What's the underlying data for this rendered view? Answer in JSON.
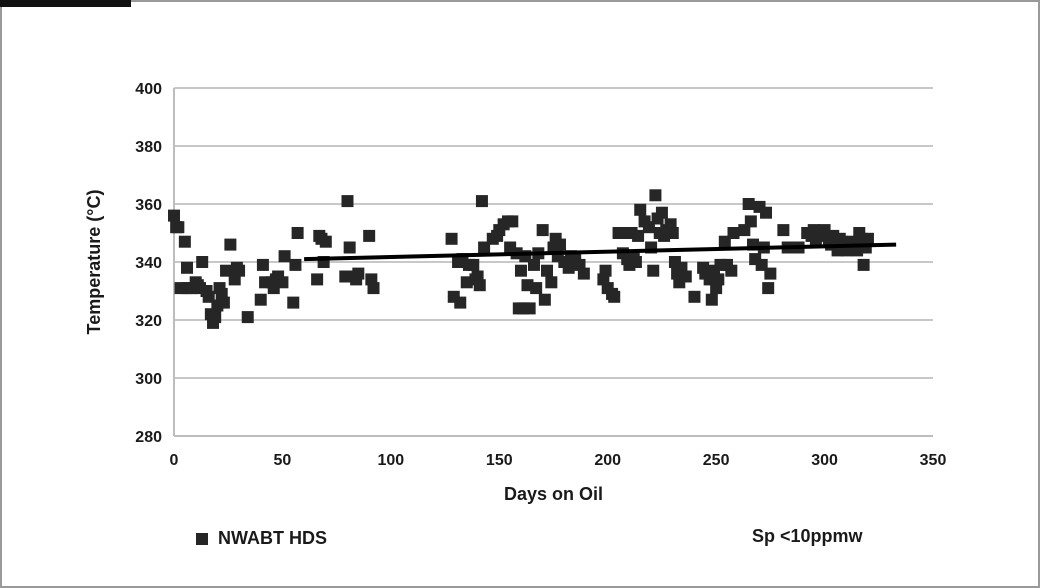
{
  "chart_data": {
    "type": "scatter",
    "title": "",
    "xlabel": "Days on Oil",
    "ylabel": "Temperature (°C)",
    "xlim": [
      0,
      350
    ],
    "ylim": [
      280,
      400
    ],
    "xticks": [
      0,
      50,
      100,
      150,
      200,
      250,
      300,
      350
    ],
    "yticks": [
      280,
      300,
      320,
      340,
      360,
      380,
      400
    ],
    "grid": "horizontal",
    "legend_position": "bottom-left",
    "series": [
      {
        "name": "NWABT HDS",
        "color": "#262626",
        "points": [
          [
            0,
            356
          ],
          [
            1,
            352
          ],
          [
            2,
            352
          ],
          [
            3,
            331
          ],
          [
            5,
            347
          ],
          [
            6,
            331
          ],
          [
            6,
            338
          ],
          [
            8,
            331
          ],
          [
            10,
            333
          ],
          [
            11,
            332
          ],
          [
            12,
            331
          ],
          [
            13,
            340
          ],
          [
            15,
            330
          ],
          [
            16,
            328
          ],
          [
            17,
            322
          ],
          [
            18,
            319
          ],
          [
            19,
            321
          ],
          [
            20,
            325
          ],
          [
            21,
            331
          ],
          [
            22,
            329
          ],
          [
            23,
            326
          ],
          [
            24,
            337
          ],
          [
            26,
            346
          ],
          [
            28,
            334
          ],
          [
            29,
            338
          ],
          [
            30,
            337
          ],
          [
            34,
            321
          ],
          [
            40,
            327
          ],
          [
            41,
            339
          ],
          [
            42,
            333
          ],
          [
            45,
            333
          ],
          [
            46,
            331
          ],
          [
            47,
            334
          ],
          [
            48,
            335
          ],
          [
            50,
            333
          ],
          [
            51,
            342
          ],
          [
            55,
            326
          ],
          [
            56,
            339
          ],
          [
            57,
            350
          ],
          [
            66,
            334
          ],
          [
            67,
            349
          ],
          [
            68,
            348
          ],
          [
            69,
            340
          ],
          [
            70,
            347
          ],
          [
            79,
            335
          ],
          [
            80,
            361
          ],
          [
            81,
            345
          ],
          [
            82,
            335
          ],
          [
            84,
            334
          ],
          [
            85,
            336
          ],
          [
            90,
            349
          ],
          [
            91,
            334
          ],
          [
            92,
            331
          ],
          [
            128,
            348
          ],
          [
            129,
            328
          ],
          [
            131,
            340
          ],
          [
            132,
            326
          ],
          [
            133,
            341
          ],
          [
            135,
            333
          ],
          [
            136,
            339
          ],
          [
            138,
            339
          ],
          [
            139,
            334
          ],
          [
            140,
            335
          ],
          [
            141,
            332
          ],
          [
            142,
            361
          ],
          [
            143,
            345
          ],
          [
            147,
            348
          ],
          [
            149,
            349
          ],
          [
            150,
            351
          ],
          [
            152,
            353
          ],
          [
            154,
            354
          ],
          [
            155,
            345
          ],
          [
            156,
            354
          ],
          [
            158,
            343
          ],
          [
            159,
            324
          ],
          [
            160,
            337
          ],
          [
            161,
            324
          ],
          [
            162,
            342
          ],
          [
            163,
            332
          ],
          [
            164,
            324
          ],
          [
            166,
            339
          ],
          [
            167,
            331
          ],
          [
            168,
            343
          ],
          [
            170,
            351
          ],
          [
            171,
            327
          ],
          [
            172,
            337
          ],
          [
            174,
            333
          ],
          [
            175,
            345
          ],
          [
            176,
            348
          ],
          [
            177,
            342
          ],
          [
            178,
            346
          ],
          [
            180,
            340
          ],
          [
            182,
            338
          ],
          [
            183,
            342
          ],
          [
            185,
            341
          ],
          [
            187,
            339
          ],
          [
            189,
            336
          ],
          [
            198,
            334
          ],
          [
            199,
            337
          ],
          [
            200,
            331
          ],
          [
            202,
            329
          ],
          [
            203,
            328
          ],
          [
            205,
            350
          ],
          [
            207,
            343
          ],
          [
            208,
            350
          ],
          [
            209,
            341
          ],
          [
            210,
            339
          ],
          [
            211,
            350
          ],
          [
            212,
            342
          ],
          [
            213,
            340
          ],
          [
            214,
            349
          ],
          [
            215,
            358
          ],
          [
            217,
            354
          ],
          [
            219,
            352
          ],
          [
            220,
            345
          ],
          [
            221,
            337
          ],
          [
            222,
            363
          ],
          [
            223,
            355
          ],
          [
            224,
            350
          ],
          [
            225,
            357
          ],
          [
            226,
            349
          ],
          [
            227,
            351
          ],
          [
            229,
            353
          ],
          [
            230,
            350
          ],
          [
            231,
            340
          ],
          [
            232,
            336
          ],
          [
            233,
            333
          ],
          [
            234,
            338
          ],
          [
            236,
            335
          ],
          [
            240,
            328
          ],
          [
            244,
            338
          ],
          [
            245,
            336
          ],
          [
            247,
            334
          ],
          [
            248,
            327
          ],
          [
            249,
            337
          ],
          [
            250,
            331
          ],
          [
            251,
            334
          ],
          [
            252,
            339
          ],
          [
            254,
            347
          ],
          [
            255,
            339
          ],
          [
            257,
            337
          ],
          [
            258,
            350
          ],
          [
            263,
            351
          ],
          [
            265,
            360
          ],
          [
            266,
            354
          ],
          [
            267,
            346
          ],
          [
            268,
            341
          ],
          [
            270,
            359
          ],
          [
            271,
            339
          ],
          [
            272,
            345
          ],
          [
            273,
            357
          ],
          [
            274,
            331
          ],
          [
            275,
            336
          ],
          [
            281,
            351
          ],
          [
            283,
            345
          ],
          [
            288,
            345
          ],
          [
            292,
            350
          ],
          [
            294,
            349
          ],
          [
            295,
            351
          ],
          [
            296,
            347
          ],
          [
            297,
            349
          ],
          [
            298,
            350
          ],
          [
            300,
            351
          ],
          [
            302,
            347
          ],
          [
            303,
            346
          ],
          [
            304,
            349
          ],
          [
            306,
            344
          ],
          [
            307,
            348
          ],
          [
            308,
            347
          ],
          [
            309,
            345
          ],
          [
            310,
            344
          ],
          [
            312,
            346
          ],
          [
            313,
            347
          ],
          [
            314,
            346
          ],
          [
            315,
            344
          ],
          [
            316,
            350
          ],
          [
            317,
            348
          ],
          [
            318,
            339
          ],
          [
            319,
            345
          ],
          [
            320,
            348
          ]
        ]
      },
      {
        "name": "trend",
        "type": "line",
        "color": "#000000",
        "points": [
          [
            60,
            341
          ],
          [
            333,
            346
          ]
        ]
      }
    ],
    "annotations": [
      "Sp < 10ppmw"
    ]
  },
  "legend": {
    "label": "NWABT HDS"
  },
  "note": {
    "text": "Sp <10ppmw"
  }
}
